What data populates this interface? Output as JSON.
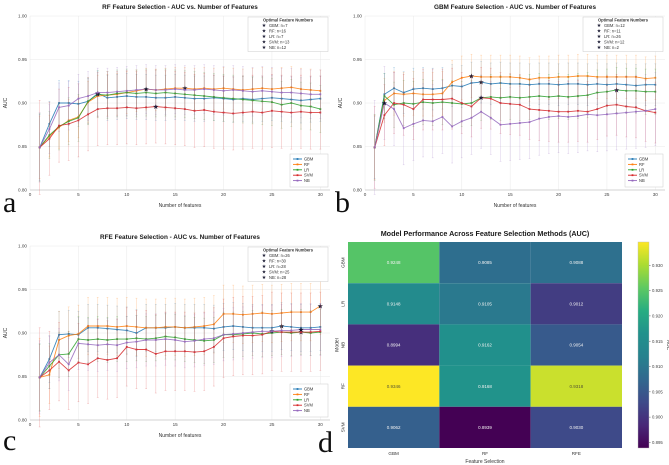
{
  "figure": {
    "background": "#ffffff",
    "panel_letters": [
      "a",
      "b",
      "c",
      "d"
    ]
  },
  "palette": {
    "GBM": "#1f77b4",
    "RF": "#ff7f0e",
    "LR": "#2ca02c",
    "SVM": "#d62728",
    "NB": "#9467bd",
    "star": "#16162e",
    "grid": "#e8e8e8"
  },
  "chart_data": [
    {
      "panel": "a",
      "type": "line",
      "title": "RF Feature Selection - AUC vs. Number of Features",
      "xlabel": "Number of features",
      "ylabel": "AUC",
      "xlim": [
        0,
        31
      ],
      "ylim": [
        0.8,
        1.0
      ],
      "xticks": [
        0,
        5,
        10,
        15,
        20,
        25,
        30
      ],
      "yticks": [
        0.8,
        0.85,
        0.9,
        0.95,
        1.0
      ],
      "grid": true,
      "legend_title": "Optimal Feature Numbers",
      "optimal_legend": [
        "GBM: n=7",
        "RF: n=16",
        "LR: n=7",
        "SVM: n=13",
        "NB: n=12"
      ],
      "series": [
        {
          "name": "GBM",
          "color": "#1f77b4",
          "star_n": 7,
          "err": 0.026,
          "values": [
            0.849,
            0.876,
            0.9,
            0.9,
            0.899,
            0.902,
            0.911,
            0.906,
            0.907,
            0.908,
            0.907,
            0.907,
            0.906,
            0.906,
            0.907,
            0.906,
            0.905,
            0.905,
            0.906,
            0.905,
            0.904,
            0.905,
            0.904,
            0.905,
            0.906,
            0.905,
            0.904,
            0.903,
            0.904,
            0.905
          ]
        },
        {
          "name": "RF",
          "color": "#ff7f0e",
          "star_n": 16,
          "err": 0.024,
          "values": [
            0.849,
            0.862,
            0.872,
            0.88,
            0.884,
            0.901,
            0.908,
            0.909,
            0.91,
            0.912,
            0.914,
            0.916,
            0.915,
            0.916,
            0.917,
            0.917,
            0.916,
            0.917,
            0.916,
            0.917,
            0.916,
            0.915,
            0.916,
            0.917,
            0.916,
            0.917,
            0.918,
            0.916,
            0.915,
            0.914
          ]
        },
        {
          "name": "LR",
          "color": "#2ca02c",
          "star_n": 7,
          "err": 0.027,
          "values": [
            0.849,
            0.863,
            0.873,
            0.879,
            0.883,
            0.902,
            0.91,
            0.909,
            0.911,
            0.912,
            0.911,
            0.912,
            0.911,
            0.912,
            0.911,
            0.91,
            0.909,
            0.908,
            0.907,
            0.906,
            0.905,
            0.904,
            0.903,
            0.902,
            0.901,
            0.898,
            0.9,
            0.897,
            0.896,
            0.893
          ]
        },
        {
          "name": "SVM",
          "color": "#d62728",
          "star_n": 13,
          "err": 0.042,
          "values": [
            0.849,
            0.859,
            0.874,
            0.876,
            0.88,
            0.887,
            0.893,
            0.894,
            0.894,
            0.895,
            0.894,
            0.895,
            0.896,
            0.895,
            0.894,
            0.893,
            0.891,
            0.892,
            0.89,
            0.889,
            0.888,
            0.889,
            0.89,
            0.889,
            0.891,
            0.89,
            0.889,
            0.89,
            0.889,
            0.889
          ]
        },
        {
          "name": "NB",
          "color": "#9467bd",
          "star_n": 12,
          "err": 0.028,
          "values": [
            0.849,
            0.87,
            0.895,
            0.897,
            0.905,
            0.908,
            0.912,
            0.912,
            0.913,
            0.914,
            0.915,
            0.916,
            0.915,
            0.915,
            0.916,
            0.915,
            0.915,
            0.916,
            0.915,
            0.914,
            0.915,
            0.914,
            0.913,
            0.914,
            0.913,
            0.912,
            0.912,
            0.911,
            0.91,
            0.91
          ]
        }
      ]
    },
    {
      "panel": "b",
      "type": "line",
      "title": "GBM Feature Selection - AUC vs. Number of Features",
      "xlabel": "Number of features",
      "ylabel": "AUC",
      "xlim": [
        0,
        31
      ],
      "ylim": [
        0.8,
        1.0
      ],
      "xticks": [
        0,
        5,
        10,
        15,
        20,
        25,
        30
      ],
      "yticks": [
        0.8,
        0.85,
        0.9,
        0.95,
        1.0
      ],
      "grid": true,
      "legend_title": "Optimal Feature Numbers",
      "optimal_legend": [
        "GBM: n=12",
        "RF: n=11",
        "LR: n=26",
        "SVM: n=12",
        "NB: n=2"
      ],
      "series": [
        {
          "name": "GBM",
          "color": "#1f77b4",
          "star_n": 12,
          "err": 0.024,
          "values": [
            0.849,
            0.91,
            0.917,
            0.912,
            0.916,
            0.917,
            0.916,
            0.917,
            0.92,
            0.919,
            0.923,
            0.924,
            0.922,
            0.923,
            0.922,
            0.922,
            0.921,
            0.922,
            0.922,
            0.921,
            0.922,
            0.922,
            0.921,
            0.922,
            0.921,
            0.922,
            0.921,
            0.92,
            0.921,
            0.921
          ]
        },
        {
          "name": "RF",
          "color": "#ff7f0e",
          "star_n": 11,
          "err": 0.025,
          "values": [
            0.849,
            0.903,
            0.911,
            0.91,
            0.911,
            0.91,
            0.91,
            0.911,
            0.924,
            0.929,
            0.931,
            0.93,
            0.93,
            0.93,
            0.93,
            0.929,
            0.927,
            0.929,
            0.929,
            0.93,
            0.93,
            0.931,
            0.931,
            0.93,
            0.93,
            0.93,
            0.93,
            0.93,
            0.928,
            0.929
          ]
        },
        {
          "name": "LR",
          "color": "#2ca02c",
          "star_n": 26,
          "err": 0.026,
          "values": [
            0.849,
            0.908,
            0.898,
            0.9,
            0.899,
            0.901,
            0.9,
            0.901,
            0.9,
            0.899,
            0.9,
            0.906,
            0.907,
            0.906,
            0.907,
            0.906,
            0.907,
            0.908,
            0.907,
            0.908,
            0.907,
            0.908,
            0.909,
            0.912,
            0.913,
            0.915,
            0.914,
            0.914,
            0.913,
            0.913
          ]
        },
        {
          "name": "SVM",
          "color": "#d62728",
          "star_n": 12,
          "err": 0.035,
          "values": [
            0.849,
            0.886,
            0.9,
            0.898,
            0.893,
            0.904,
            0.904,
            0.904,
            0.905,
            0.9,
            0.896,
            0.906,
            0.905,
            0.9,
            0.899,
            0.898,
            0.893,
            0.892,
            0.891,
            0.89,
            0.89,
            0.891,
            0.89,
            0.893,
            0.897,
            0.898,
            0.896,
            0.895,
            0.891,
            0.889
          ]
        },
        {
          "name": "NB",
          "color": "#9467bd",
          "star_n": 2,
          "err": 0.042,
          "values": [
            0.849,
            0.9,
            0.893,
            0.871,
            0.876,
            0.88,
            0.879,
            0.884,
            0.873,
            0.879,
            0.883,
            0.89,
            0.883,
            0.875,
            0.876,
            0.877,
            0.878,
            0.882,
            0.884,
            0.885,
            0.884,
            0.885,
            0.887,
            0.886,
            0.887,
            0.888,
            0.889,
            0.89,
            0.891,
            0.893
          ]
        }
      ]
    },
    {
      "panel": "c",
      "type": "line",
      "title": "RFE Feature Selection - AUC vs. Number of Features",
      "xlabel": "Number of features",
      "ylabel": "AUC",
      "xlim": [
        0,
        31
      ],
      "ylim": [
        0.8,
        1.0
      ],
      "xticks": [
        0,
        5,
        10,
        15,
        20,
        25,
        30
      ],
      "yticks": [
        0.8,
        0.85,
        0.9,
        0.95,
        1.0
      ],
      "grid": true,
      "legend_title": "Optimal Feature Numbers",
      "optimal_legend": [
        "GBM: n=26",
        "RF: n=30",
        "LR: n=28",
        "SVM: n=25",
        "NB: n=28"
      ],
      "series": [
        {
          "name": "GBM",
          "color": "#1f77b4",
          "star_n": 26,
          "err": 0.027,
          "values": [
            0.849,
            0.87,
            0.898,
            0.899,
            0.898,
            0.906,
            0.906,
            0.905,
            0.904,
            0.903,
            0.9,
            0.906,
            0.906,
            0.906,
            0.907,
            0.906,
            0.906,
            0.906,
            0.905,
            0.907,
            0.908,
            0.907,
            0.906,
            0.906,
            0.906,
            0.908,
            0.907,
            0.906,
            0.906,
            0.907
          ]
        },
        {
          "name": "RF",
          "color": "#ff7f0e",
          "star_n": 30,
          "err": 0.033,
          "values": [
            0.849,
            0.852,
            0.892,
            0.897,
            0.899,
            0.908,
            0.908,
            0.908,
            0.907,
            0.908,
            0.907,
            0.906,
            0.906,
            0.907,
            0.907,
            0.906,
            0.907,
            0.908,
            0.91,
            0.922,
            0.922,
            0.921,
            0.922,
            0.923,
            0.922,
            0.923,
            0.924,
            0.924,
            0.924,
            0.931
          ]
        },
        {
          "name": "LR",
          "color": "#2ca02c",
          "star_n": 28,
          "err": 0.026,
          "values": [
            0.849,
            0.862,
            0.875,
            0.876,
            0.893,
            0.892,
            0.893,
            0.892,
            0.893,
            0.893,
            0.894,
            0.893,
            0.894,
            0.896,
            0.895,
            0.893,
            0.892,
            0.891,
            0.892,
            0.898,
            0.898,
            0.899,
            0.9,
            0.899,
            0.9,
            0.901,
            0.9,
            0.901,
            0.9,
            0.901
          ]
        },
        {
          "name": "SVM",
          "color": "#d62728",
          "star_n": 25,
          "err": 0.045,
          "values": [
            0.849,
            0.857,
            0.867,
            0.857,
            0.866,
            0.864,
            0.871,
            0.869,
            0.871,
            0.884,
            0.881,
            0.881,
            0.876,
            0.879,
            0.879,
            0.879,
            0.878,
            0.879,
            0.884,
            0.894,
            0.896,
            0.897,
            0.897,
            0.898,
            0.902,
            0.901,
            0.901,
            0.901,
            0.901,
            0.902
          ]
        },
        {
          "name": "NB",
          "color": "#9467bd",
          "star_n": 28,
          "err": 0.03,
          "values": [
            0.849,
            0.866,
            0.875,
            0.864,
            0.888,
            0.887,
            0.886,
            0.887,
            0.886,
            0.889,
            0.89,
            0.892,
            0.892,
            0.893,
            0.892,
            0.89,
            0.891,
            0.893,
            0.894,
            0.898,
            0.899,
            0.9,
            0.901,
            0.902,
            0.902,
            0.903,
            0.903,
            0.904,
            0.904,
            0.904
          ]
        }
      ]
    },
    {
      "panel": "d",
      "type": "heatmap",
      "title": "Model Performance Across Feature Selection Methods (AUC)",
      "xlabel": "Feature Selection",
      "ylabel": "Model",
      "columns": [
        "GBM",
        "RF",
        "RFE"
      ],
      "rows": [
        "GBM",
        "LR",
        "NB",
        "RF",
        "SVM"
      ],
      "values": [
        [
          0.9248,
          0.9085,
          0.9088
        ],
        [
          0.9148,
          0.9105,
          0.9012
        ],
        [
          0.8994,
          0.9162,
          0.9054
        ],
        [
          0.9346,
          0.9168,
          0.9318
        ],
        [
          0.9062,
          0.8939,
          0.903
        ]
      ],
      "colorbar": {
        "label": "AUC",
        "ticks": [
          0.93,
          0.925,
          0.92,
          0.915,
          0.91,
          0.905,
          0.9,
          0.895
        ],
        "vmin": 0.8939,
        "vmax": 0.9346,
        "colormap": "viridis"
      }
    }
  ]
}
